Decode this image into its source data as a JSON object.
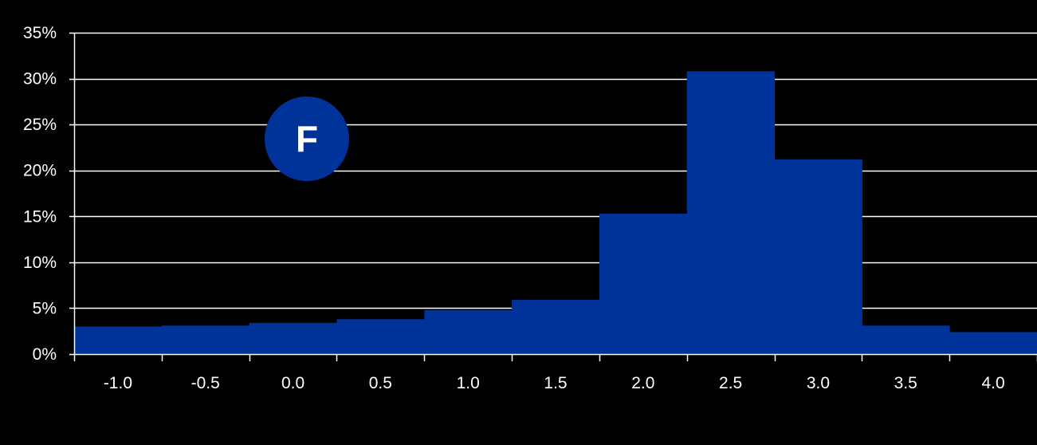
{
  "colors": {
    "background": "#000000",
    "bar": "#003399",
    "gridline": "#ffffff",
    "text": "#ffffff"
  },
  "badge": {
    "label": "F"
  },
  "chart_data": {
    "type": "bar",
    "categories": [
      "-1.0",
      "-0.5",
      "0.0",
      "0.5",
      "1.0",
      "1.5",
      "2.0",
      "2.5",
      "3.0",
      "3.5",
      "4.0"
    ],
    "values": [
      3.0,
      3.1,
      3.4,
      3.8,
      4.8,
      5.9,
      15.3,
      30.8,
      21.2,
      3.1,
      2.4
    ],
    "value_unit": "%",
    "ylim": [
      0,
      35
    ],
    "y_ticks": [
      0,
      5,
      10,
      15,
      20,
      25,
      30,
      35
    ],
    "y_tick_labels": [
      "0%",
      "5%",
      "10%",
      "15%",
      "20%",
      "25%",
      "30%",
      "35%"
    ],
    "grid": true,
    "bar_gap": 0,
    "legend": "none",
    "title": "",
    "xlabel": "",
    "ylabel": ""
  }
}
